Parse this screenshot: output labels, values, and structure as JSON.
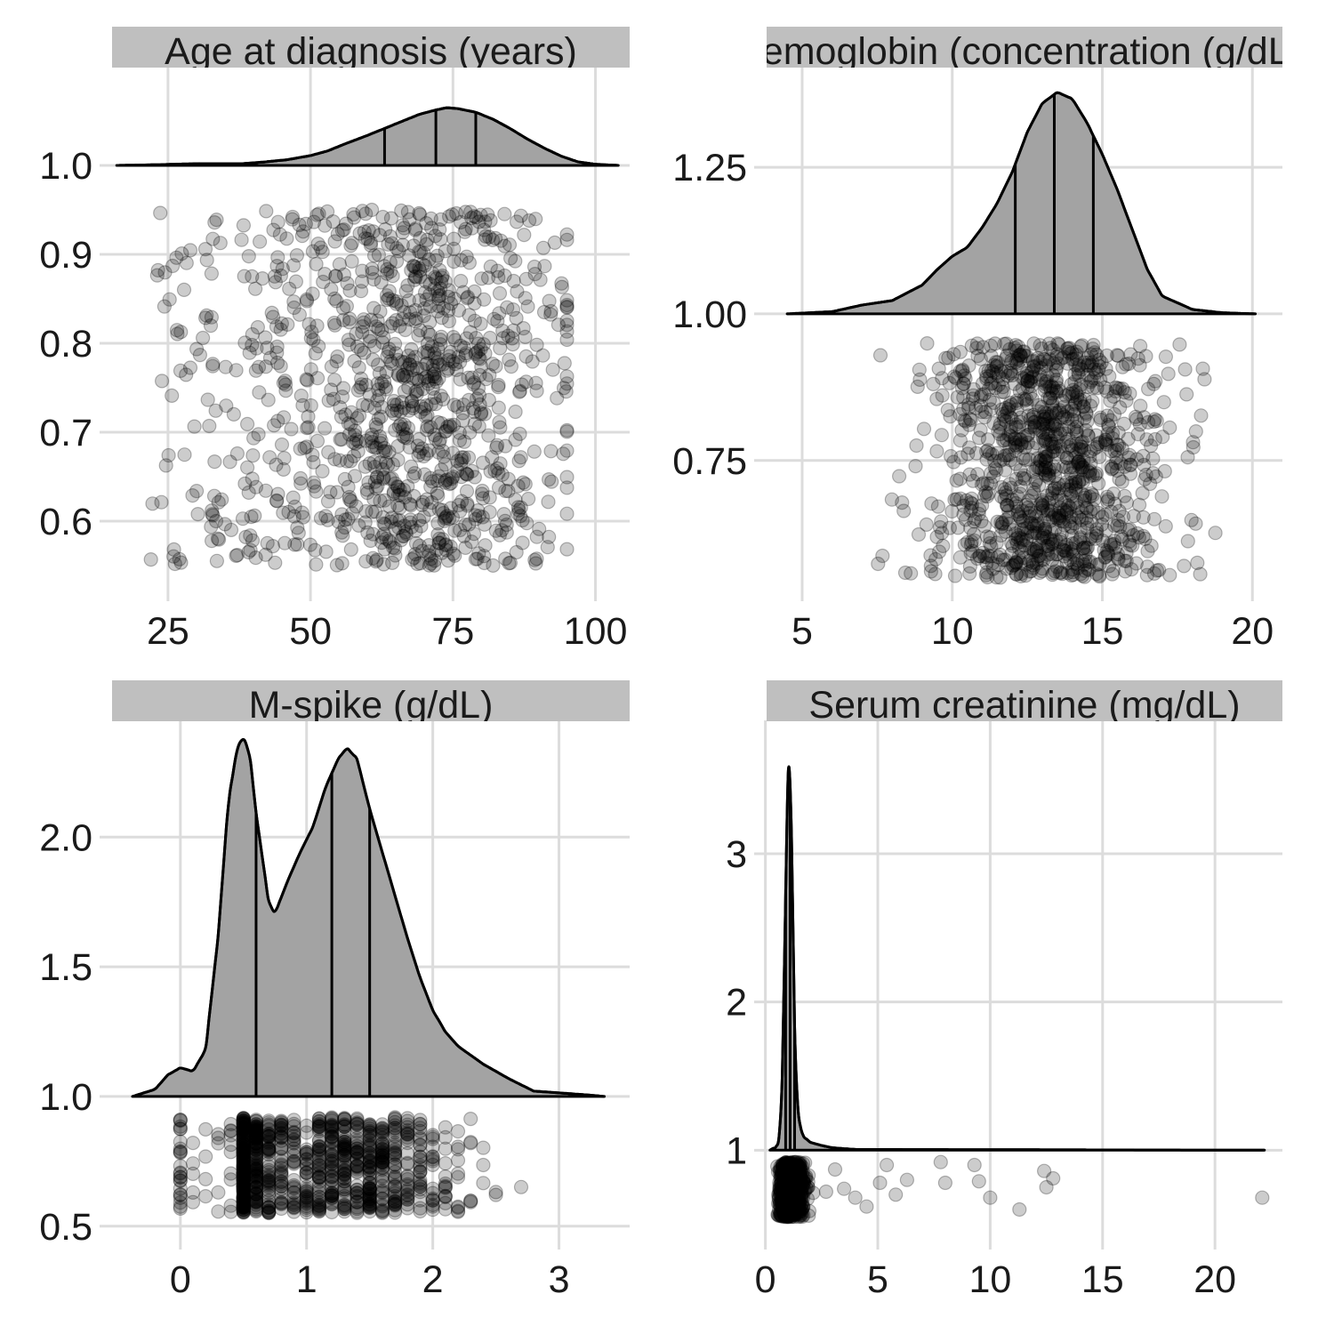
{
  "chart_data": [
    {
      "type": "scatter",
      "title": "Age at diagnosis (years)",
      "xticks": [
        "25",
        "50",
        "75",
        "100"
      ],
      "yticks": [
        "0.6",
        "0.7",
        "0.8",
        "0.9",
        "1.0"
      ],
      "xlim": [
        13,
        106
      ],
      "ylim": [
        0.51,
        1.11
      ],
      "density_baseline": 1.0,
      "density_peak_height": 0.065,
      "density_range": [
        16,
        104
      ],
      "quantiles": [
        63,
        72,
        79
      ],
      "density_curve": {
        "x": [
          16,
          22,
          30,
          38,
          42,
          46,
          50,
          53,
          56,
          60,
          63,
          66,
          69,
          72,
          74,
          76,
          79,
          82,
          85,
          88,
          91,
          94,
          97,
          100,
          104
        ],
        "density": [
          0.0,
          0.01,
          0.03,
          0.03,
          0.06,
          0.1,
          0.17,
          0.25,
          0.37,
          0.52,
          0.64,
          0.76,
          0.88,
          0.96,
          1.0,
          0.98,
          0.92,
          0.8,
          0.64,
          0.46,
          0.3,
          0.16,
          0.06,
          0.02,
          0.0
        ]
      },
      "points": {
        "n": 1100,
        "jitter_y": [
          0.55,
          0.95
        ],
        "x_mean": 70,
        "x_sd": 12,
        "x_min": 22,
        "x_max": 95,
        "x_dist": "skew-left"
      }
    },
    {
      "type": "scatter",
      "title": "Hemoglobin (concentration (g/dL))",
      "xticks": [
        "5",
        "10",
        "15",
        "20"
      ],
      "yticks": [
        "0.75",
        "1.00",
        "1.25"
      ],
      "xlim": [
        3.4,
        21.0
      ],
      "ylim": [
        0.51,
        1.42
      ],
      "density_baseline": 1.0,
      "density_peak_height": 0.378,
      "density_range": [
        4.5,
        20.1
      ],
      "quantiles": [
        12.1,
        13.4,
        14.7
      ],
      "density_curve": {
        "x": [
          4.5,
          6,
          7,
          8,
          9,
          9.5,
          10,
          10.5,
          11,
          11.5,
          12,
          12.5,
          13,
          13.5,
          14,
          14.5,
          15,
          15.5,
          16,
          16.5,
          17,
          18,
          19,
          20.1
        ],
        "density": [
          0.0,
          0.01,
          0.04,
          0.06,
          0.13,
          0.2,
          0.26,
          0.3,
          0.39,
          0.5,
          0.64,
          0.82,
          0.95,
          1.0,
          0.97,
          0.86,
          0.72,
          0.56,
          0.38,
          0.2,
          0.08,
          0.02,
          0.005,
          0.0
        ]
      },
      "points": {
        "n": 1100,
        "jitter_y": [
          0.55,
          0.95
        ],
        "x_mean": 13.3,
        "x_sd": 1.9,
        "x_min": 5.8,
        "x_max": 18.9,
        "x_dist": "normal"
      }
    },
    {
      "type": "scatter",
      "title": "M-spike (g/dL)",
      "xticks": [
        "0",
        "1",
        "2",
        "3"
      ],
      "yticks": [
        "0.5",
        "1.0",
        "1.5",
        "2.0"
      ],
      "xlim": [
        -0.64,
        3.56
      ],
      "ylim": [
        0.41,
        2.45
      ],
      "density_baseline": 1.0,
      "density_peak_height": 1.385,
      "density_range": [
        -0.38,
        3.36
      ],
      "quantiles": [
        0.6,
        1.2,
        1.5
      ],
      "density_curve": {
        "x": [
          -0.38,
          -0.2,
          -0.1,
          0.0,
          0.1,
          0.2,
          0.3,
          0.38,
          0.45,
          0.5,
          0.55,
          0.6,
          0.7,
          0.75,
          0.85,
          0.95,
          1.05,
          1.15,
          1.25,
          1.32,
          1.4,
          1.5,
          1.6,
          1.7,
          1.8,
          1.9,
          2.0,
          2.1,
          2.2,
          2.4,
          2.6,
          2.8,
          3.0,
          3.2,
          3.36
        ],
        "density": [
          0.0,
          0.02,
          0.06,
          0.08,
          0.07,
          0.13,
          0.45,
          0.82,
          0.97,
          1.0,
          0.95,
          0.79,
          0.54,
          0.51,
          0.6,
          0.68,
          0.75,
          0.86,
          0.94,
          0.97,
          0.94,
          0.8,
          0.68,
          0.56,
          0.44,
          0.33,
          0.24,
          0.18,
          0.14,
          0.09,
          0.05,
          0.015,
          0.01,
          0.005,
          0.0
        ]
      },
      "points": {
        "n": 1000,
        "jitter_y": [
          0.55,
          0.92
        ],
        "values_discrete": true,
        "x_mean": 1.2,
        "x_sd": 0.58,
        "x_min": 0.0,
        "x_max": 3.0,
        "x_dist": "bimodal"
      }
    },
    {
      "type": "scatter",
      "title": "Serum creatinine (mg/dL)",
      "xticks": [
        "0",
        "5",
        "10",
        "15",
        "20"
      ],
      "yticks": [
        "1",
        "2",
        "3"
      ],
      "xlim": [
        -0.5,
        23.0
      ],
      "ylim": [
        0.33,
        3.9
      ],
      "density_baseline": 1.0,
      "density_peak_height": 2.65,
      "density_range": [
        0.2,
        22.2
      ],
      "quantiles": [
        0.9,
        1.1,
        1.3
      ],
      "density_curve": {
        "x": [
          0.2,
          0.5,
          0.7,
          0.85,
          0.95,
          1.05,
          1.15,
          1.25,
          1.35,
          1.5,
          1.7,
          2.0,
          2.5,
          3.0,
          4.0,
          22.2
        ],
        "density": [
          0.0,
          0.01,
          0.06,
          0.45,
          0.88,
          1.0,
          0.85,
          0.45,
          0.18,
          0.07,
          0.035,
          0.02,
          0.012,
          0.006,
          0.002,
          0.0
        ]
      },
      "points": {
        "n": 1000,
        "jitter_y": [
          0.55,
          0.92
        ],
        "x_mean": 1.1,
        "x_sd": 0.35,
        "x_min": 0.4,
        "x_max": 22.1,
        "x_dist": "lognormal",
        "outliers": [
          [
            2.7,
            0.72
          ],
          [
            3.1,
            0.87
          ],
          [
            3.5,
            0.74
          ],
          [
            4.0,
            0.68
          ],
          [
            4.5,
            0.62
          ],
          [
            5.1,
            0.78
          ],
          [
            5.4,
            0.9
          ],
          [
            5.8,
            0.7
          ],
          [
            6.3,
            0.8
          ],
          [
            7.8,
            0.92
          ],
          [
            8.0,
            0.78
          ],
          [
            9.3,
            0.9
          ],
          [
            9.5,
            0.79
          ],
          [
            10.0,
            0.68
          ],
          [
            11.3,
            0.6
          ],
          [
            12.4,
            0.86
          ],
          [
            12.8,
            0.81
          ],
          [
            12.5,
            0.75
          ],
          [
            22.1,
            0.68
          ]
        ]
      }
    }
  ]
}
